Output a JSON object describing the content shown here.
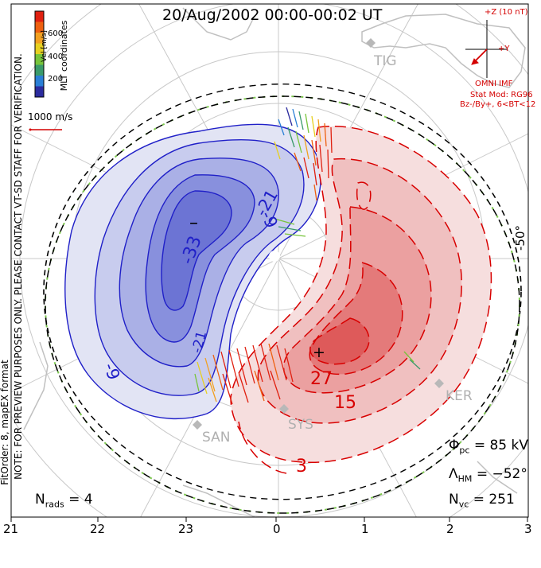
{
  "title": "20/Aug/2002 00:00-00:02 UT",
  "side_note": "NOTE: FOR PREVIEW PURPOSES ONLY. PLEASE CONTACT VT-SD STAFF FOR VERIFICATION.",
  "fit_note": "FitOrder: 8, mapEX format",
  "coord_label": "MLT coordinates",
  "colorbar": {
    "label": "Vel [m/s]",
    "ticks": [
      "600",
      "400",
      "200"
    ],
    "colors": [
      "#2b2b9e",
      "#2a7fd6",
      "#3a9a6a",
      "#77c43a",
      "#e7d020",
      "#f2a020",
      "#ee6010",
      "#e02010"
    ]
  },
  "vector_scale": {
    "label": "1000 m/s",
    "color": "#d40000"
  },
  "imf": {
    "z_label": "+Z (10 nT)",
    "y_label": "+Y",
    "omni_label": "OMNI IMF",
    "model_label": "Stat Mod: RG96",
    "condition_label": "Bz-/By+, 6<BT<12"
  },
  "stations": [
    "TIG",
    "KER",
    "SYS",
    "SAN"
  ],
  "latitude_label": "-50°",
  "contour_labels": [
    "-21",
    "-9",
    "-33",
    "-21",
    "-9",
    "27",
    "15",
    "3"
  ],
  "extrema": {
    "min": "–",
    "max": "+"
  },
  "stats": {
    "phi_label": "Φ",
    "phi_sub": "pc",
    "phi_value": "= 85 kV",
    "lambda_label": "Λ",
    "lambda_sub": "HM",
    "lambda_value": "= −52°",
    "nvc_label": "N",
    "nvc_sub": "vc",
    "nvc_value": "= 251",
    "nrads_label": "N",
    "nrads_sub": "rads",
    "nrads_value": "= 4"
  },
  "mlt_ticks": [
    "21",
    "22",
    "23",
    "0",
    "1",
    "2",
    "3"
  ],
  "colors": {
    "negative": "#2020c8",
    "positive": "#d80000",
    "boundary_dash": "#7ec850",
    "grid": "#c8c8c8",
    "land": "#c0c0c0"
  }
}
